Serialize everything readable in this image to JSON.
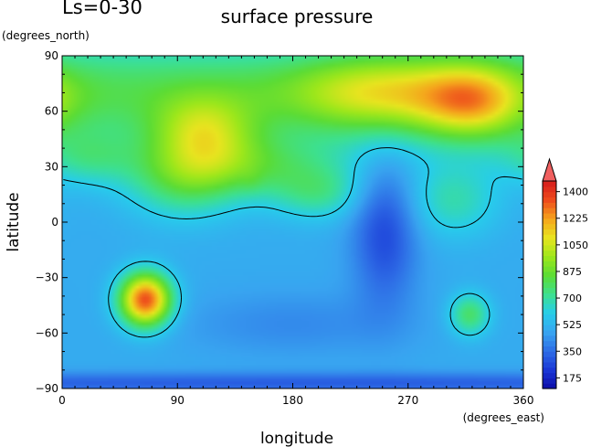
{
  "chart_data": {
    "type": "heatmap",
    "title": "surface pressure",
    "corner_label": "Ls=0-30",
    "xlabel": "longitude",
    "ylabel": "latitude",
    "x_units": "(degrees_east)",
    "y_units": "(degrees_north)",
    "xlim": [
      0,
      360
    ],
    "ylim": [
      -90,
      90
    ],
    "x_ticks": [
      0,
      90,
      180,
      270,
      360
    ],
    "y_ticks": [
      -90,
      -60,
      -30,
      0,
      30,
      60,
      90
    ],
    "colorbar": {
      "min": 105,
      "max": 1470,
      "ticks": [
        175,
        350,
        525,
        700,
        875,
        1050,
        1225,
        1400
      ],
      "colors": [
        "#0c0ca8",
        "#1a37d6",
        "#2e6de6",
        "#38a4f0",
        "#27cdeb",
        "#3de08f",
        "#5bdc35",
        "#9de71b",
        "#e8e41f",
        "#f5a51c",
        "#ee4c1c",
        "#d61c1c"
      ],
      "extend": "max"
    },
    "contour_level": 600,
    "background_value": 500,
    "features": [
      {
        "lon": 0,
        "lat": 70,
        "value": 800,
        "sx": 500,
        "sy": 20
      },
      {
        "lon": 110,
        "lat": 48,
        "value": 860,
        "sx": 28,
        "sy": 14
      },
      {
        "lon": 320,
        "lat": 65,
        "value": 900,
        "sx": 28,
        "sy": 14
      },
      {
        "lon": 250,
        "lat": 70,
        "value": 830,
        "sx": 50,
        "sy": 14
      },
      {
        "lon": 140,
        "lat": 30,
        "value": 760,
        "sx": 55,
        "sy": 12
      },
      {
        "lon": 95,
        "lat": 20,
        "value": 700,
        "sx": 30,
        "sy": 14
      },
      {
        "lon": 200,
        "lat": 15,
        "value": 680,
        "sx": 25,
        "sy": 10
      },
      {
        "lon": 20,
        "lat": 35,
        "value": 660,
        "sx": 25,
        "sy": 10
      },
      {
        "lon": 305,
        "lat": 12,
        "value": 680,
        "sx": 25,
        "sy": 14
      },
      {
        "lon": 148,
        "lat": 22,
        "value": 530,
        "sx": 6,
        "sy": 5
      },
      {
        "lon": 252,
        "lat": -5,
        "value": 270,
        "sx": 18,
        "sy": 28
      },
      {
        "lon": 65,
        "lat": -42,
        "value": 1350,
        "sx": 14,
        "sy": 10
      },
      {
        "lon": 318,
        "lat": -50,
        "value": 780,
        "sx": 11,
        "sy": 8
      },
      {
        "lon": 180,
        "lat": -87,
        "value": 320,
        "sx": 500,
        "sy": 4
      },
      {
        "lon": 180,
        "lat": -55,
        "value": 420,
        "sx": 60,
        "sy": 12
      }
    ]
  }
}
